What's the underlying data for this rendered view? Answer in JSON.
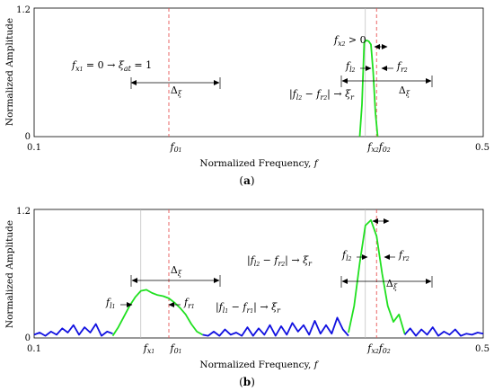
{
  "chart_data": [
    {
      "type": "line",
      "panel_label": "(a)",
      "xlabel": "Normalized Frequency, f",
      "ylabel": "Normalized Amplitude",
      "xlim": [
        0.1,
        0.5
      ],
      "ylim": [
        0,
        1.2
      ],
      "x_tick_labels": [
        "0.1",
        "f01",
        "fx2f02",
        "0.5"
      ],
      "y_tick_labels": [
        "0",
        "1.2"
      ],
      "grid": false,
      "reference_lines": [
        {
          "x": 0.22,
          "label": "f01",
          "color": "#e85555",
          "style": "dashed"
        },
        {
          "x": 0.395,
          "label": "fx2",
          "color": "#bbbbbb",
          "style": "solid"
        },
        {
          "x": 0.405,
          "label": "f02",
          "color": "#e85555",
          "style": "dashed"
        }
      ],
      "series": [
        {
          "color": "#1010e0",
          "x": [
            0.1,
            0.39,
            0.5
          ],
          "y": [
            0,
            0,
            0
          ]
        },
        {
          "color": "#20e020",
          "x": [
            0.39,
            0.392,
            0.394,
            0.396,
            0.398,
            0.4,
            0.402,
            0.404,
            0.406
          ],
          "y": [
            0,
            0.3,
            0.88,
            0.9,
            0.89,
            0.86,
            0.6,
            0.22,
            0
          ]
        }
      ],
      "annotations": [
        "fx1 = 0 → ξat = 1",
        "Δξ",
        "fx2 > 0",
        "fl2",
        "fr2",
        "|fl2 − fr2| → ξr",
        "Δξ"
      ]
    },
    {
      "type": "line",
      "panel_label": "(b)",
      "xlabel": "Normalized Frequency, f",
      "ylabel": "Normalized Amplitude",
      "xlim": [
        0.1,
        0.5
      ],
      "ylim": [
        0,
        1.2
      ],
      "x_tick_labels": [
        "0.1",
        "fx1",
        "f01",
        "fx2f02",
        "0.5"
      ],
      "y_tick_labels": [
        "0",
        "1.2"
      ],
      "grid": false,
      "reference_lines": [
        {
          "x": 0.195,
          "label": "fx1",
          "color": "#bbbbbb",
          "style": "solid"
        },
        {
          "x": 0.22,
          "label": "f01",
          "color": "#e85555",
          "style": "dashed"
        },
        {
          "x": 0.395,
          "label": "fx2",
          "color": "#bbbbbb",
          "style": "solid"
        },
        {
          "x": 0.405,
          "label": "f02",
          "color": "#e85555",
          "style": "dashed"
        }
      ],
      "series": [
        {
          "color": "#1010e0",
          "x": [
            0.1,
            0.105,
            0.11,
            0.115,
            0.12,
            0.125,
            0.13,
            0.135,
            0.14,
            0.145,
            0.15,
            0.155,
            0.16,
            0.165,
            0.17,
            0.25,
            0.255,
            0.26,
            0.265,
            0.27,
            0.275,
            0.28,
            0.285,
            0.29,
            0.295,
            0.3,
            0.305,
            0.31,
            0.315,
            0.32,
            0.325,
            0.33,
            0.335,
            0.34,
            0.345,
            0.35,
            0.355,
            0.36,
            0.365,
            0.37,
            0.375,
            0.38,
            0.43,
            0.435,
            0.44,
            0.445,
            0.45,
            0.455,
            0.46,
            0.465,
            0.47,
            0.475,
            0.48,
            0.485,
            0.49,
            0.495,
            0.5
          ],
          "y": [
            0.03,
            0.05,
            0.02,
            0.06,
            0.03,
            0.09,
            0.05,
            0.12,
            0.03,
            0.1,
            0.05,
            0.13,
            0.02,
            0.06,
            0.04,
            0.03,
            0.02,
            0.06,
            0.02,
            0.08,
            0.03,
            0.05,
            0.02,
            0.1,
            0.02,
            0.09,
            0.03,
            0.12,
            0.02,
            0.11,
            0.03,
            0.14,
            0.06,
            0.12,
            0.03,
            0.16,
            0.04,
            0.12,
            0.04,
            0.19,
            0.08,
            0.02,
            0.03,
            0.09,
            0.02,
            0.08,
            0.03,
            0.1,
            0.02,
            0.06,
            0.03,
            0.08,
            0.02,
            0.04,
            0.03,
            0.05,
            0.04
          ]
        },
        {
          "color": "#20e020",
          "x": [
            0.17,
            0.175,
            0.18,
            0.185,
            0.19,
            0.195,
            0.2,
            0.205,
            0.21,
            0.215,
            0.22,
            0.225,
            0.23,
            0.235,
            0.24,
            0.245,
            0.25,
            0.38,
            0.385,
            0.39,
            0.395,
            0.4,
            0.405,
            0.41,
            0.415,
            0.42,
            0.425,
            0.43
          ],
          "y": [
            0.02,
            0.1,
            0.2,
            0.3,
            0.38,
            0.44,
            0.45,
            0.42,
            0.4,
            0.39,
            0.37,
            0.33,
            0.28,
            0.22,
            0.13,
            0.06,
            0.03,
            0.05,
            0.3,
            0.7,
            1.05,
            1.1,
            0.95,
            0.6,
            0.3,
            0.15,
            0.22,
            0.04
          ]
        }
      ],
      "annotations": [
        "Δξ",
        "fl1",
        "fr1",
        "|fl1 − fr1| → ξr",
        "|fl2 − fr2| → ξr",
        "fl2",
        "fr2",
        "Δξ"
      ]
    }
  ]
}
